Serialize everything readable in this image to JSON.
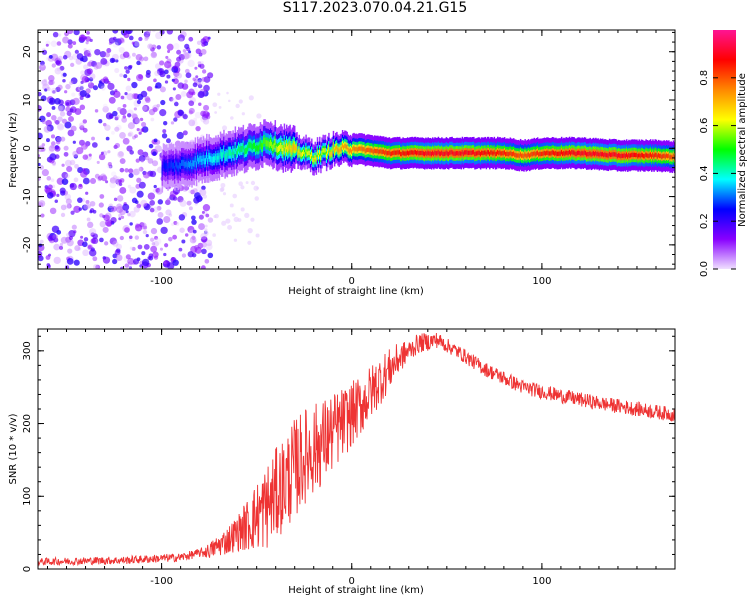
{
  "title": "S117.2023.070.04.21.G15",
  "chart_data": [
    {
      "type": "heatmap",
      "xlabel": "Height of straight line (km)",
      "ylabel": "Frequency (Hz)",
      "xlim": [
        -165,
        170
      ],
      "ylim": [
        -25,
        24.5
      ],
      "xticks": [
        -100,
        0,
        100
      ],
      "yticks": [
        -20,
        -10,
        0,
        10,
        20
      ],
      "colorbar": {
        "label": "Normalized spectral amplitude",
        "range": [
          0.0,
          1.0
        ],
        "ticks": [
          "0.0",
          "0.2",
          "0.4",
          "0.6",
          "0.8"
        ],
        "colormap": [
          "#f0e0ff",
          "#8800ff",
          "#0000ff",
          "#00ffff",
          "#00ff00",
          "#ffff00",
          "#ff8800",
          "#ff0000",
          "#ff1493"
        ]
      },
      "ridge": {
        "description_points_x": [
          -100,
          -90,
          -80,
          -70,
          -60,
          -50,
          -45,
          -40,
          -35,
          -30,
          -25,
          -20,
          -15,
          -10,
          0,
          10,
          20,
          40,
          60,
          80,
          90,
          100,
          120,
          140,
          160,
          170
        ],
        "frequency_hz": [
          -4,
          -3.5,
          -2.5,
          -1.5,
          -0.5,
          0.5,
          1.5,
          0.5,
          0,
          -0.5,
          -1,
          -1.8,
          -1,
          -0.3,
          0,
          -0.5,
          -1,
          -1,
          -1,
          -1,
          -1.5,
          -1,
          -1,
          -1.5,
          -1.5,
          -1.8
        ],
        "amplitude": [
          0.25,
          0.3,
          0.35,
          0.4,
          0.45,
          0.5,
          0.55,
          0.6,
          0.65,
          0.7,
          0.6,
          0.65,
          0.6,
          0.7,
          0.75,
          0.8,
          0.85,
          0.9,
          0.9,
          0.85,
          0.8,
          0.85,
          0.9,
          0.9,
          0.85,
          0.8
        ]
      },
      "noise_region_x": [
        -165,
        -80
      ]
    },
    {
      "type": "line",
      "xlabel": "Height of straight line (km)",
      "ylabel": "SNR (10 * v/v)",
      "xlim": [
        -165,
        170
      ],
      "ylim": [
        0,
        330
      ],
      "xticks": [
        -100,
        0,
        100
      ],
      "yticks": [
        0,
        100,
        200,
        300
      ],
      "series_color": "#ee3333",
      "envelope": {
        "x": [
          -165,
          -120,
          -90,
          -75,
          -65,
          -55,
          -45,
          -35,
          -25,
          -15,
          -5,
          5,
          15,
          25,
          35,
          45,
          55,
          70,
          90,
          110,
          130,
          150,
          170
        ],
        "y": [
          10,
          12,
          16,
          25,
          40,
          60,
          85,
          120,
          155,
          175,
          200,
          225,
          260,
          290,
          310,
          315,
          300,
          275,
          250,
          238,
          228,
          220,
          212
        ]
      },
      "noise_amplitude": {
        "x": [
          -165,
          -80,
          -60,
          -45,
          -30,
          -15,
          0,
          15,
          30,
          50,
          170
        ],
        "y": [
          5,
          6,
          25,
          60,
          70,
          60,
          45,
          35,
          15,
          10,
          10
        ]
      }
    }
  ]
}
